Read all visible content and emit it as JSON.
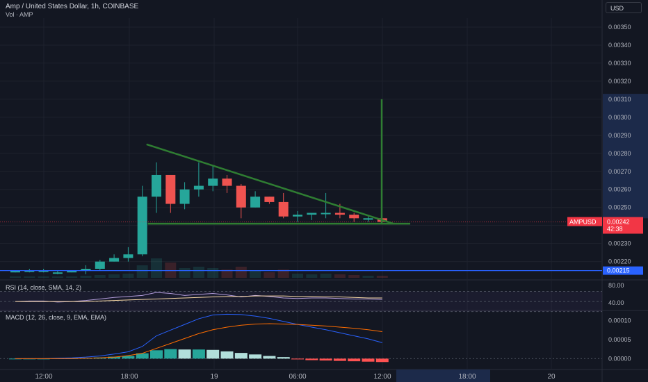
{
  "header": {
    "title": "Amp / United States Dollar, 1h, COINBASE",
    "volume_label": "Vol · AMP",
    "currency": "USD"
  },
  "colors": {
    "background": "#131722",
    "up": "#26a69a",
    "down": "#ef5350",
    "grid": "#1e222d",
    "axis_text": "#b2b5be",
    "triangle": "#2f7d32",
    "support_line": "#2962ff",
    "rsi_line": "#b39ddb",
    "rsi_ma": "#f7d8a5",
    "macd_line": "#2962ff",
    "macd_signal": "#ff6d00",
    "price_tag": "#f23645"
  },
  "chart_data": [
    {
      "type": "candlestick",
      "title": "Amp / United States Dollar, 1h, COINBASE",
      "y_axis_ticks": [
        "0.00350",
        "0.00340",
        "0.00330",
        "0.00320",
        "0.00310",
        "0.00300",
        "0.00290",
        "0.00280",
        "0.00270",
        "0.00260",
        "0.00250",
        "0.00240",
        "0.00230",
        "0.00220"
      ],
      "ylim": [
        0.00211,
        0.00355
      ],
      "x_axis_ticks": [
        "12:00",
        "18:00",
        "19",
        "06:00",
        "12:00",
        "18:00",
        "20"
      ],
      "candles": [
        {
          "o": 0.00214,
          "h": 0.00215,
          "l": 0.00214,
          "c": 0.00215
        },
        {
          "o": 0.00215,
          "h": 0.00216,
          "l": 0.00214,
          "c": 0.00215
        },
        {
          "o": 0.00215,
          "h": 0.00216,
          "l": 0.00214,
          "c": 0.00215
        },
        {
          "o": 0.00214,
          "h": 0.00215,
          "l": 0.00213,
          "c": 0.00214
        },
        {
          "o": 0.00214,
          "h": 0.00215,
          "l": 0.00214,
          "c": 0.00215
        },
        {
          "o": 0.00215,
          "h": 0.00218,
          "l": 0.00213,
          "c": 0.00216
        },
        {
          "o": 0.00216,
          "h": 0.00221,
          "l": 0.00215,
          "c": 0.0022
        },
        {
          "o": 0.0022,
          "h": 0.00224,
          "l": 0.0022,
          "c": 0.00222
        },
        {
          "o": 0.00222,
          "h": 0.00228,
          "l": 0.0022,
          "c": 0.00224
        },
        {
          "o": 0.00224,
          "h": 0.00262,
          "l": 0.00223,
          "c": 0.00256
        },
        {
          "o": 0.00256,
          "h": 0.00275,
          "l": 0.00247,
          "c": 0.00268
        },
        {
          "o": 0.00268,
          "h": 0.00268,
          "l": 0.00247,
          "c": 0.00252
        },
        {
          "o": 0.00252,
          "h": 0.00264,
          "l": 0.00249,
          "c": 0.0026
        },
        {
          "o": 0.0026,
          "h": 0.00275,
          "l": 0.00256,
          "c": 0.00262
        },
        {
          "o": 0.00262,
          "h": 0.00273,
          "l": 0.00259,
          "c": 0.00266
        },
        {
          "o": 0.00266,
          "h": 0.00268,
          "l": 0.00258,
          "c": 0.00262
        },
        {
          "o": 0.00262,
          "h": 0.00263,
          "l": 0.00244,
          "c": 0.0025
        },
        {
          "o": 0.0025,
          "h": 0.00259,
          "l": 0.0025,
          "c": 0.00256
        },
        {
          "o": 0.00256,
          "h": 0.00256,
          "l": 0.00252,
          "c": 0.00253
        },
        {
          "o": 0.00253,
          "h": 0.00258,
          "l": 0.00244,
          "c": 0.00245
        },
        {
          "o": 0.00245,
          "h": 0.00248,
          "l": 0.00242,
          "c": 0.00246
        },
        {
          "o": 0.00246,
          "h": 0.00247,
          "l": 0.00243,
          "c": 0.00247
        },
        {
          "o": 0.00247,
          "h": 0.00258,
          "l": 0.00244,
          "c": 0.00247
        },
        {
          "o": 0.00247,
          "h": 0.00252,
          "l": 0.00244,
          "c": 0.00246
        },
        {
          "o": 0.00246,
          "h": 0.00247,
          "l": 0.00242,
          "c": 0.00244
        },
        {
          "o": 0.00244,
          "h": 0.00245,
          "l": 0.00242,
          "c": 0.00244
        },
        {
          "o": 0.00244,
          "h": 0.00244,
          "l": 0.00242,
          "c": 0.00242
        }
      ],
      "breakout_line": {
        "price_from": 0.00241,
        "price_to": 0.0031
      },
      "triangle": {
        "top_from": 0.00285,
        "top_to": 0.00241,
        "base": 0.00241
      },
      "support_level": 0.00215,
      "current_price": {
        "symbol": "AMPUSD",
        "price": "0.00242",
        "countdown": "42:38"
      },
      "support_price_label": "0.00215"
    },
    {
      "type": "line",
      "title": "RSI (14, close, SMA, 14, 2)",
      "y_axis_ticks": [
        "80.00",
        "40.00"
      ],
      "ylim": [
        35,
        90
      ],
      "series": [
        {
          "name": "RSI",
          "values": [
            50,
            51,
            51,
            49,
            50,
            52,
            55,
            58,
            60,
            62,
            68,
            66,
            62,
            64,
            66,
            63,
            59,
            62,
            60,
            57,
            56,
            57,
            57,
            56,
            55,
            55,
            54
          ]
        },
        {
          "name": "SMA",
          "values": [
            50,
            50,
            50,
            50,
            50,
            50,
            51,
            52,
            53,
            54,
            55,
            56,
            57,
            58,
            59,
            60,
            60,
            61,
            61,
            61,
            60,
            60,
            59,
            59,
            58,
            57,
            57
          ]
        }
      ]
    },
    {
      "type": "bar",
      "title": "MACD (12, 26, close, 9, EMA, EMA)",
      "y_axis_ticks": [
        "0.00010",
        "0.00005",
        "0.00000"
      ],
      "ylim": [
        -2.5e-05,
        0.000125
      ],
      "histogram": [
        0,
        0,
        0,
        1e-06,
        1e-06,
        2e-06,
        3e-06,
        5e-06,
        7e-06,
        1.4e-05,
        2.2e-05,
        2.5e-05,
        2.4e-05,
        2.4e-05,
        2.3e-05,
        1.9e-05,
        1.5e-05,
        1.1e-05,
        7e-06,
        4e-06,
        -2e-06,
        -4e-06,
        -5e-06,
        -6e-06,
        -7e-06,
        -8e-06,
        -9e-06
      ],
      "series": [
        {
          "name": "MACD",
          "values": [
            0,
            0,
            0,
            1e-06,
            2e-06,
            4e-06,
            7e-06,
            1.2e-05,
            1.8e-05,
            3.2e-05,
            6e-05,
            7.5e-05,
            9e-05,
            0.000105,
            0.000115,
            0.000117,
            0.000116,
            0.000112,
            0.000106,
            9.8e-05,
            9e-05,
            8.3e-05,
            7.6e-05,
            6.8e-05,
            6e-05,
            5.2e-05,
            4.2e-05
          ]
        },
        {
          "name": "Signal",
          "values": [
            0,
            0,
            0,
            0,
            0,
            1e-06,
            2e-06,
            4e-06,
            8e-06,
            1.4e-05,
            2.7e-05,
            4e-05,
            5.3e-05,
            6.6e-05,
            7.6e-05,
            8.3e-05,
            8.8e-05,
            9.1e-05,
            9.2e-05,
            9.1e-05,
            9e-05,
            8.8e-05,
            8.6e-05,
            8.3e-05,
            8e-05,
            7.6e-05,
            7.1e-05
          ]
        }
      ]
    }
  ],
  "footer": {
    "time_labels": [
      "12:00",
      "18:00",
      "19",
      "06:00",
      "12:00",
      "18:00",
      "20"
    ]
  }
}
